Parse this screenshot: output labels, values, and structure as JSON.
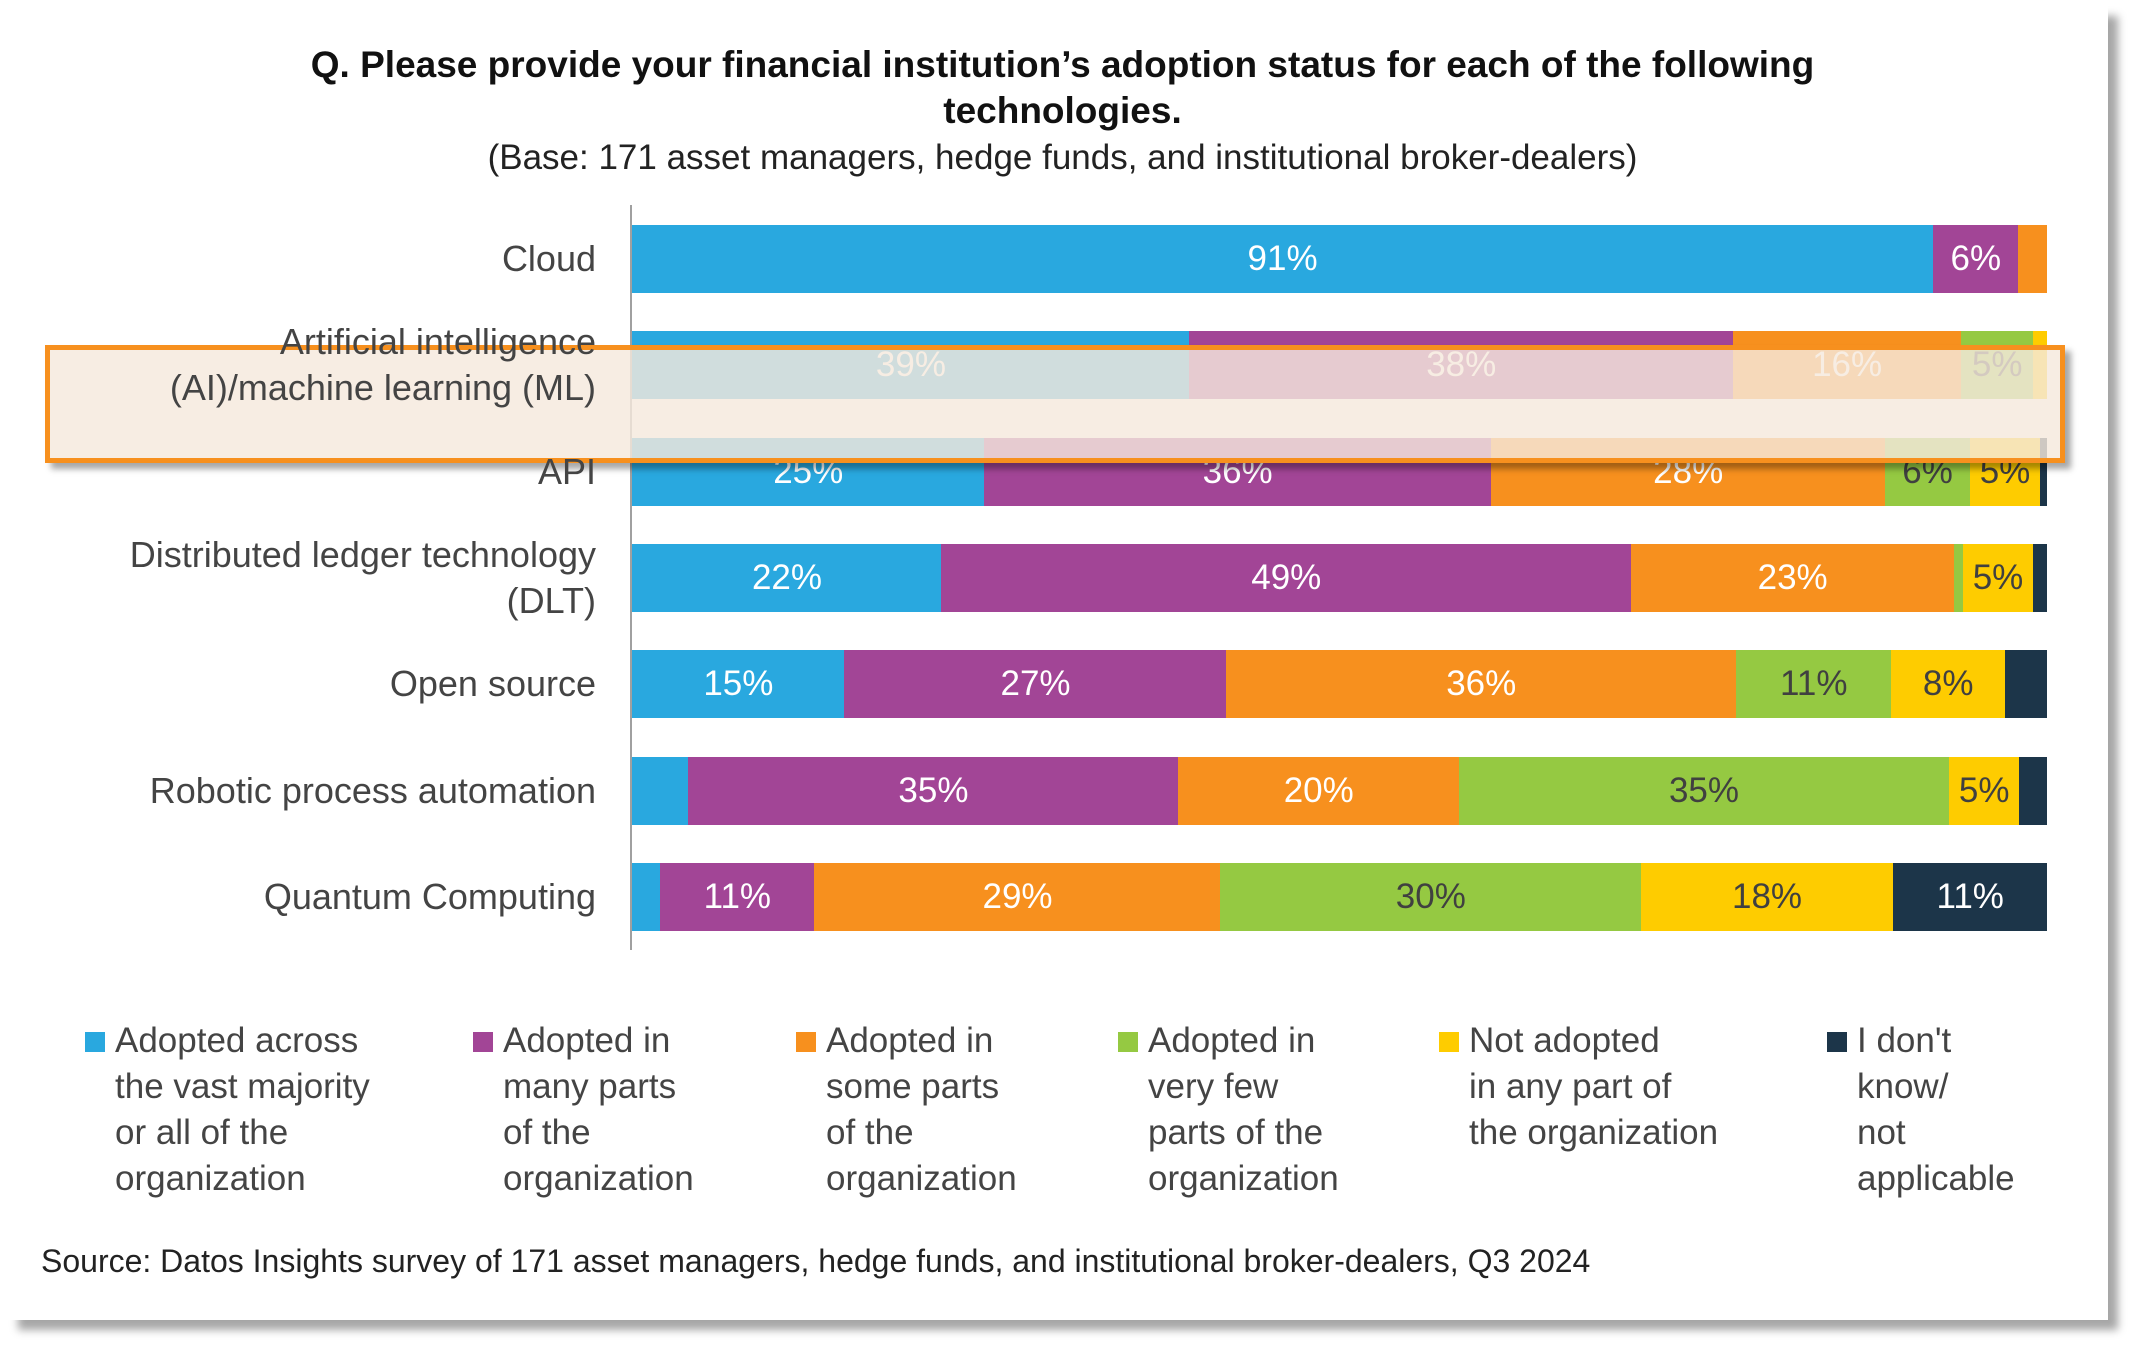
{
  "title_lines": [
    "Q. Please provide your financial institution’s adoption status for each of the following",
    "technologies."
  ],
  "subtitle": "(Base: 171 asset managers, hedge funds, and institutional broker-dealers)",
  "source": "Source: Datos Insights survey of 171 asset managers, hedge funds, and institutional broker-dealers, Q3 2024",
  "chart_data": {
    "type": "bar",
    "orientation": "horizontal-stacked-100",
    "title": "Q. Please provide your financial institution’s adoption status for each of the following technologies.",
    "categories": [
      "Cloud",
      "Artificial intelligence\n(AI)/machine learning (ML)",
      "API",
      "Distributed ledger technology\n(DLT)",
      "Open source",
      "Robotic process automation",
      "Quantum Computing"
    ],
    "series": [
      {
        "name": "Adopted across\nthe vast majority\nor all of the\norganization",
        "color": "#29a8df",
        "text_color": "#ffffff",
        "values": [
          91,
          39,
          25,
          22,
          15,
          4,
          2
        ],
        "labels": [
          "91%",
          "39%",
          "25%",
          "22%",
          "15%",
          null,
          null
        ]
      },
      {
        "name": "Adopted in\nmany parts\nof the\norganization",
        "color": "#a24596",
        "text_color": "#ffffff",
        "values": [
          6,
          38,
          36,
          49,
          27,
          35,
          11
        ],
        "labels": [
          "6%",
          "38%",
          "36%",
          "49%",
          "27%",
          "35%",
          "11%"
        ]
      },
      {
        "name": "Adopted in\nsome parts\nof the\norganization",
        "color": "#f7901e",
        "text_color": "#ffffff",
        "values": [
          2,
          16,
          28,
          23,
          36,
          20,
          29
        ],
        "labels": [
          null,
          "16%",
          "28%",
          "23%",
          "36%",
          "20%",
          "29%"
        ]
      },
      {
        "name": "Adopted in\nvery few\nparts of the\norganization",
        "color": "#95c942",
        "text_color": "#404040",
        "values": [
          0,
          5,
          6,
          0.6,
          11,
          35,
          30
        ],
        "labels": [
          null,
          "5%",
          "6%",
          null,
          "11%",
          "35%",
          "30%"
        ]
      },
      {
        "name": "Not adopted\nin any part of\nthe organization",
        "color": "#fecc00",
        "text_color": "#404040",
        "values": [
          0,
          1,
          5,
          5,
          8,
          5,
          18
        ],
        "labels": [
          null,
          null,
          "5%",
          "5%",
          "8%",
          "5%",
          "18%"
        ]
      },
      {
        "name": "I don't\nknow/\nnot\napplicable",
        "color": "#1c3549",
        "text_color": "#ffffff",
        "values": [
          0,
          0,
          0.5,
          1,
          3,
          2,
          11
        ],
        "labels": [
          null,
          null,
          null,
          null,
          null,
          null,
          "11%"
        ]
      }
    ],
    "xlim": [
      0,
      100
    ],
    "legend_position": "bottom",
    "highlighted_category": "Artificial intelligence\n(AI)/machine learning (ML)"
  }
}
